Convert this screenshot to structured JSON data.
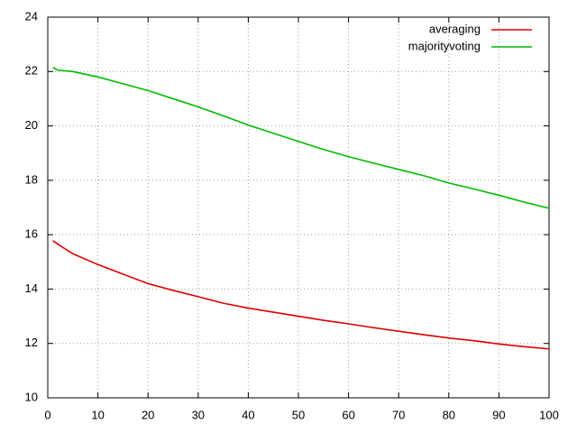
{
  "chart_data": {
    "type": "line",
    "x": [
      1,
      2,
      5,
      10,
      15,
      20,
      25,
      30,
      35,
      40,
      45,
      50,
      55,
      60,
      65,
      70,
      75,
      80,
      85,
      90,
      95,
      100
    ],
    "series": [
      {
        "name": "averaging",
        "color": "#dd0000",
        "values": [
          15.78,
          15.65,
          15.3,
          14.9,
          14.55,
          14.2,
          13.95,
          13.72,
          13.48,
          13.3,
          13.15,
          13.0,
          12.85,
          12.72,
          12.58,
          12.45,
          12.32,
          12.2,
          12.1,
          11.98,
          11.88,
          11.8
        ]
      },
      {
        "name": "majorityvoting",
        "color": "#00bb00",
        "values": [
          22.15,
          22.05,
          22.0,
          21.8,
          21.55,
          21.3,
          21.0,
          20.7,
          20.37,
          20.03,
          19.73,
          19.43,
          19.13,
          18.87,
          18.63,
          18.4,
          18.17,
          17.9,
          17.68,
          17.45,
          17.2,
          16.97
        ]
      }
    ],
    "xlim": [
      0,
      100
    ],
    "xticks": [
      0,
      10,
      20,
      30,
      40,
      50,
      60,
      70,
      80,
      90,
      100
    ],
    "ylim": [
      10,
      24
    ],
    "yticks": [
      10,
      12,
      14,
      16,
      18,
      20,
      22,
      24
    ],
    "grid": true,
    "legend": "top-right"
  }
}
